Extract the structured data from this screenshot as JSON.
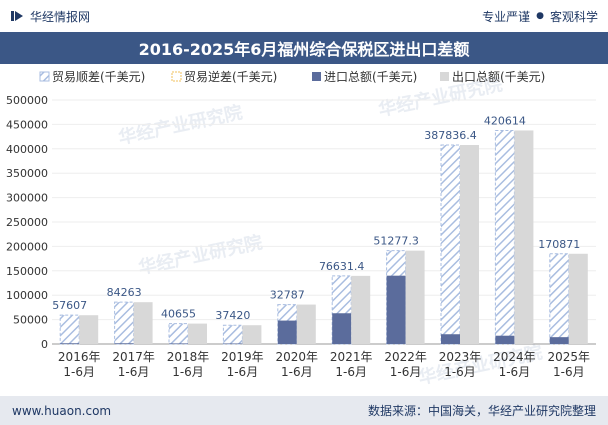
{
  "header": {
    "brand": "华经情报网",
    "right_tags": [
      "专业严谨",
      "客观科学"
    ]
  },
  "chart_data": {
    "type": "bar",
    "title": "2016-2025年6月福州综合保税区进出口差额",
    "categories": [
      "2016年\n1-6月",
      "2017年\n1-6月",
      "2018年\n1-6月",
      "2019年\n1-6月",
      "2020年\n1-6月",
      "2021年\n1-6月",
      "2022年\n1-6月",
      "2023年\n1-6月",
      "2024年\n1-6月",
      "2025年\n1-6月"
    ],
    "ylim": [
      0,
      500000
    ],
    "yticks": [
      0,
      50000,
      100000,
      150000,
      200000,
      250000,
      300000,
      350000,
      400000,
      450000,
      500000
    ],
    "legend_position": "top",
    "series": [
      {
        "name": "贸易顺差(千美元)",
        "color": "#a9bde0",
        "values": [
          57607,
          84263,
          40655,
          37420,
          32787,
          76631.4,
          51277.3,
          387836.4,
          420614,
          170871
        ]
      },
      {
        "name": "贸易逆差(千美元)",
        "color": "#f2c15e",
        "values": [
          0,
          0,
          0,
          0,
          0,
          0,
          0,
          0,
          0,
          0
        ]
      },
      {
        "name": "进口总额(千美元)",
        "color": "#5b6c9c",
        "values": [
          1500,
          1500,
          1200,
          1100,
          48000,
          63000,
          140000,
          20000,
          17000,
          14000
        ]
      },
      {
        "name": "出口总额(千美元)",
        "color": "#d8d8d8",
        "values": [
          59000,
          85700,
          41800,
          38500,
          80800,
          139600,
          191300,
          407800,
          437600,
          184900
        ]
      }
    ],
    "data_labels": [
      "57607",
      "84263",
      "40655",
      "37420",
      "32787",
      "76631.4",
      "51277.3",
      "387836.4",
      "420614",
      "170871"
    ]
  },
  "footer": {
    "website": "www.huaon.com",
    "source": "数据来源：中国海关，华经产业研究院整理"
  },
  "watermark": "华经产业研究院"
}
